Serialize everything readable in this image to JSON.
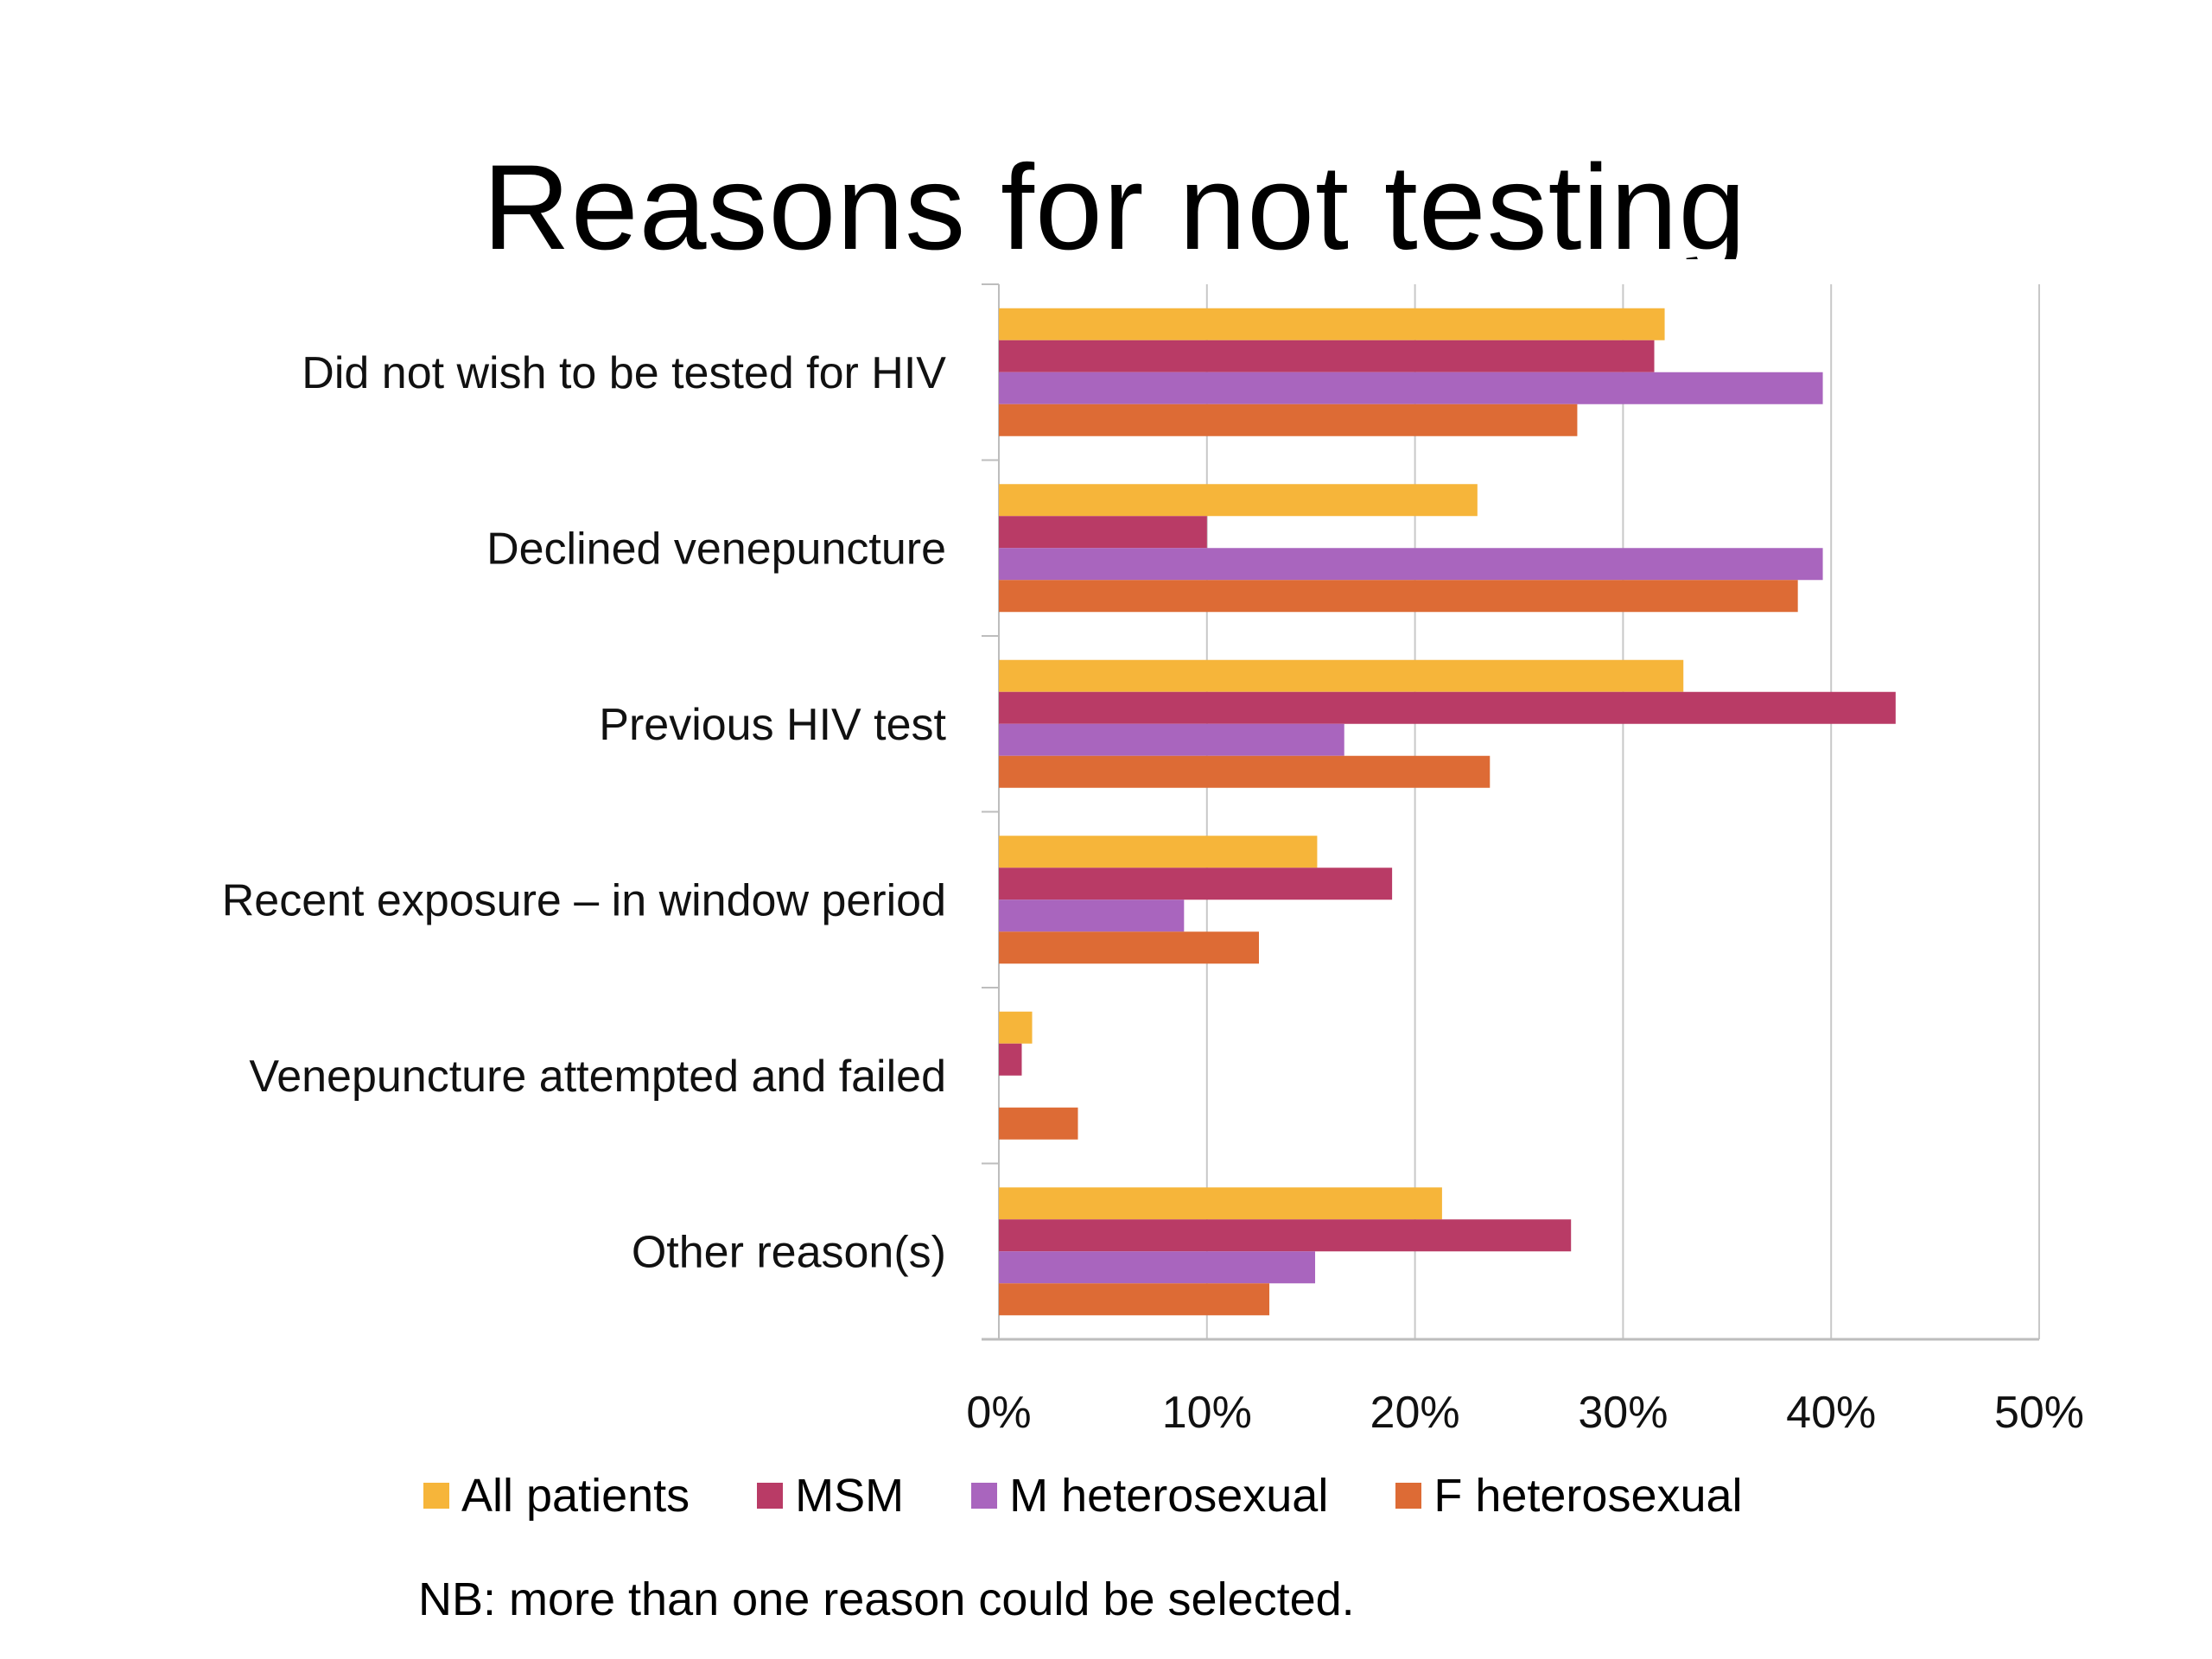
{
  "title": "Reasons for not testing",
  "note": "NB: more than one reason could be selected.",
  "chart_data": {
    "type": "bar",
    "orientation": "horizontal",
    "title": "Reasons for not testing",
    "xlabel": "",
    "ylabel": "",
    "xlim": [
      0,
      50
    ],
    "x_ticks": [
      "0%",
      "10%",
      "20%",
      "30%",
      "40%",
      "50%"
    ],
    "x_tick_values": [
      0,
      10,
      20,
      30,
      40,
      50
    ],
    "grid": true,
    "legend_position": "bottom",
    "categories": [
      "Did not wish to be tested for HIV",
      "Declined venepuncture",
      "Previous HIV test",
      "Recent exposure – in window period",
      "Venepuncture attempted and failed",
      "Other reason(s)"
    ],
    "series": [
      {
        "name": "All patients",
        "color": "#F6B53A",
        "values": [
          32.0,
          23.0,
          32.9,
          15.3,
          1.6,
          21.3
        ]
      },
      {
        "name": "MSM",
        "color": "#B93B66",
        "values": [
          31.5,
          10.0,
          43.1,
          18.9,
          1.1,
          27.5
        ]
      },
      {
        "name": "M heterosexual",
        "color": "#A965BE",
        "values": [
          39.6,
          39.6,
          16.6,
          8.9,
          0,
          15.2
        ]
      },
      {
        "name": "F heterosexual",
        "color": "#DD6B35",
        "values": [
          27.8,
          38.4,
          23.6,
          12.5,
          3.8,
          13.0
        ]
      }
    ]
  }
}
